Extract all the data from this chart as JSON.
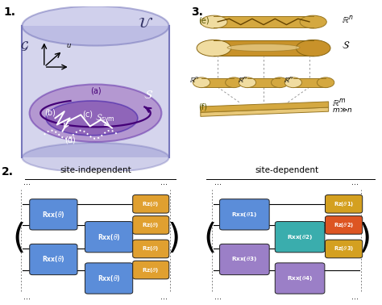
{
  "bg_color": "#ffffff",
  "panel1_label": "1.",
  "panel2_label": "2.",
  "panel3_label": "3.",
  "cyl_fill": "#8888cc",
  "cyl_top_fill": "#aaaadd",
  "s_fill": "#9966bb",
  "ssym_fill": "#7744aa",
  "site_independent_title": "site-independent",
  "site_dependent_title": "site-dependent",
  "rxx_blue": "#5b8dd9",
  "rxx_teal": "#3aadad",
  "rxx_lavender": "#9b7fc7",
  "rz_orange": "#e0a030",
  "rz_red": "#dd5522",
  "rz_gold": "#d4a020",
  "tan_dark": "#c8922a",
  "tan_mid": "#d4a840",
  "tan_light": "#e8c878",
  "tan_very_light": "#f0dca0"
}
